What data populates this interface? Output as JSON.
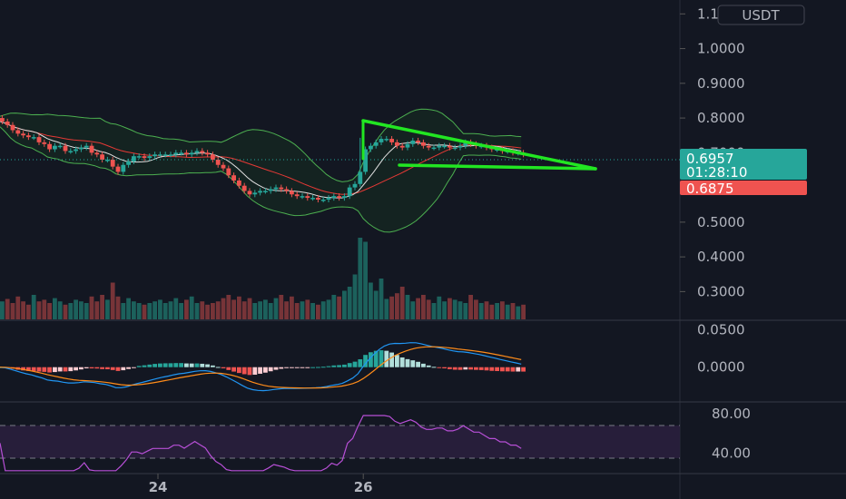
{
  "currency": "USDT",
  "colors": {
    "background": "#131722",
    "up": "#26a69a",
    "down": "#ef5350",
    "trendline": "#22e622",
    "rsi": "#b74fd6",
    "macd": "#2196f3",
    "signal": "#ff8c1a",
    "bb_basis": "#e53935",
    "bb_band": "#4caf50"
  },
  "last_price": {
    "value": "0.6957",
    "countdown": "01:28:10",
    "color": "#26a69a"
  },
  "prev_price": {
    "value": "0.6875",
    "color": "#ef5350"
  },
  "chart_data": [
    {
      "type": "candlestick",
      "name": "price",
      "y_ticks": [
        "1.1000",
        "1.0000",
        "0.9000",
        "0.8000",
        "0.7000",
        "0.6000",
        "0.5000",
        "0.4000",
        "0.3000"
      ],
      "ylim": [
        0.22,
        1.14
      ],
      "x_ticks": [
        {
          "label": "24",
          "index": 30
        },
        {
          "label": "26",
          "index": 69
        }
      ],
      "closes": [
        0.79,
        0.78,
        0.765,
        0.755,
        0.75,
        0.745,
        0.745,
        0.73,
        0.725,
        0.71,
        0.72,
        0.72,
        0.705,
        0.705,
        0.71,
        0.715,
        0.72,
        0.7,
        0.695,
        0.68,
        0.68,
        0.66,
        0.645,
        0.665,
        0.675,
        0.69,
        0.69,
        0.685,
        0.69,
        0.695,
        0.695,
        0.695,
        0.695,
        0.7,
        0.7,
        0.695,
        0.7,
        0.705,
        0.7,
        0.695,
        0.68,
        0.665,
        0.655,
        0.635,
        0.62,
        0.605,
        0.59,
        0.58,
        0.585,
        0.59,
        0.59,
        0.595,
        0.6,
        0.595,
        0.59,
        0.58,
        0.575,
        0.575,
        0.57,
        0.57,
        0.565,
        0.565,
        0.57,
        0.575,
        0.57,
        0.575,
        0.6,
        0.61,
        0.645,
        0.71,
        0.72,
        0.73,
        0.74,
        0.74,
        0.73,
        0.72,
        0.715,
        0.725,
        0.735,
        0.73,
        0.72,
        0.715,
        0.715,
        0.72,
        0.72,
        0.715,
        0.715,
        0.72,
        0.73,
        0.725,
        0.72,
        0.72,
        0.715,
        0.71,
        0.71,
        0.705,
        0.705,
        0.7,
        0.7,
        0.695,
        0.7,
        0.695
      ],
      "volume": [
        0.22,
        0.25,
        0.2,
        0.28,
        0.22,
        0.18,
        0.3,
        0.22,
        0.24,
        0.2,
        0.26,
        0.22,
        0.18,
        0.2,
        0.24,
        0.22,
        0.2,
        0.28,
        0.22,
        0.3,
        0.24,
        0.45,
        0.28,
        0.2,
        0.26,
        0.22,
        0.2,
        0.18,
        0.2,
        0.22,
        0.24,
        0.2,
        0.22,
        0.26,
        0.2,
        0.24,
        0.28,
        0.2,
        0.22,
        0.18,
        0.2,
        0.22,
        0.26,
        0.3,
        0.24,
        0.28,
        0.22,
        0.26,
        0.2,
        0.22,
        0.24,
        0.2,
        0.26,
        0.3,
        0.22,
        0.28,
        0.2,
        0.22,
        0.24,
        0.2,
        0.18,
        0.22,
        0.24,
        0.3,
        0.28,
        0.35,
        0.4,
        0.55,
        1.0,
        0.95,
        0.45,
        0.35,
        0.5,
        0.25,
        0.28,
        0.32,
        0.4,
        0.3,
        0.22,
        0.26,
        0.3,
        0.24,
        0.2,
        0.28,
        0.22,
        0.26,
        0.24,
        0.22,
        0.2,
        0.3,
        0.24,
        0.2,
        0.22,
        0.18,
        0.2,
        0.22,
        0.18,
        0.2,
        0.16,
        0.18,
        0.15,
        0.14
      ]
    },
    {
      "type": "macd",
      "y_ticks": [
        "0.0500",
        "0.0000"
      ],
      "ylim": [
        -0.045,
        0.06
      ]
    },
    {
      "type": "line",
      "name": "rsi",
      "y_ticks": [
        "80.00",
        "40.00"
      ],
      "ylim": [
        20,
        90
      ],
      "bands": [
        70,
        30
      ]
    }
  ]
}
